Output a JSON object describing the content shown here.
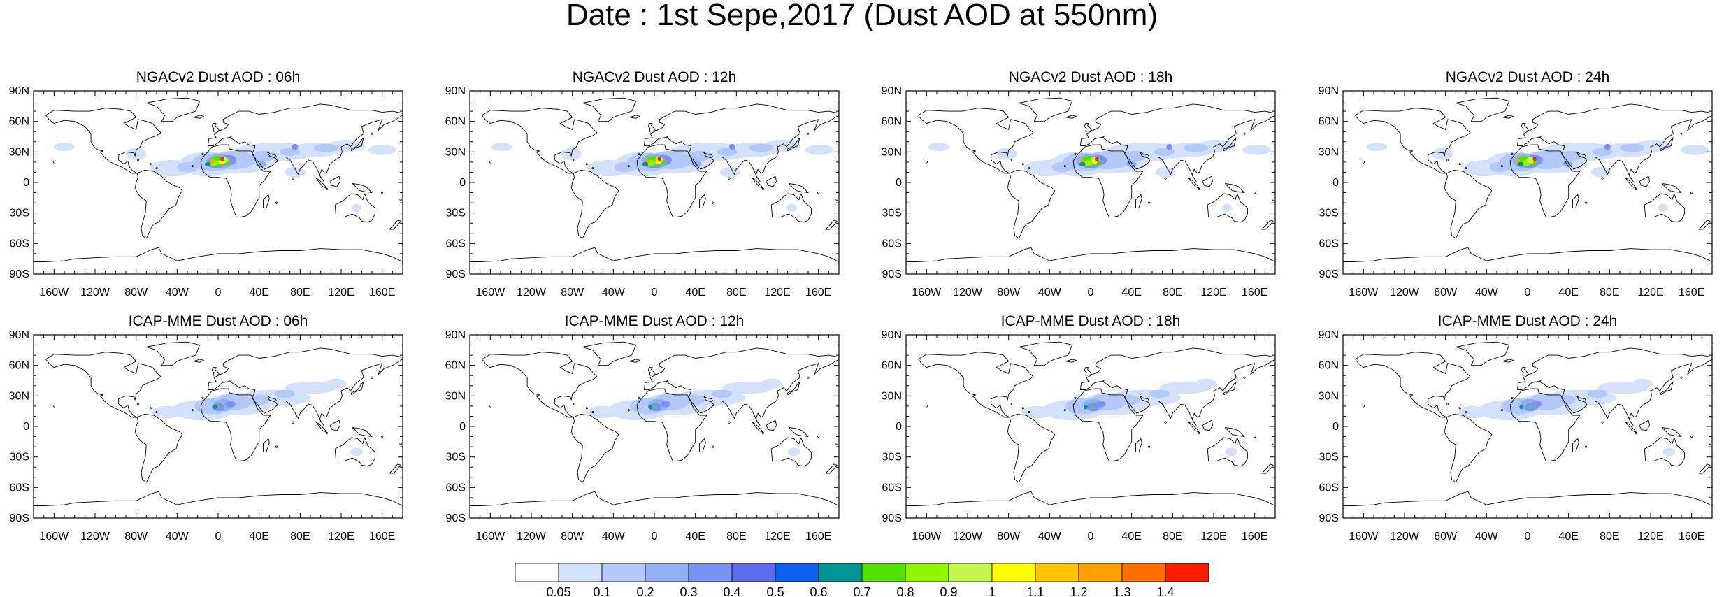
{
  "title": "Date : 1st Sepe,2017 (Dust AOD at 550nm)",
  "panels": [
    {
      "title": "NGACv2 Dust AOD : 06h",
      "model": "NGACv2",
      "hour": "06h"
    },
    {
      "title": "NGACv2 Dust AOD : 12h",
      "model": "NGACv2",
      "hour": "12h"
    },
    {
      "title": "NGACv2 Dust AOD : 18h",
      "model": "NGACv2",
      "hour": "18h"
    },
    {
      "title": "NGACv2 Dust AOD : 24h",
      "model": "NGACv2",
      "hour": "24h"
    },
    {
      "title": "ICAP-MME Dust AOD : 06h",
      "model": "ICAP-MME",
      "hour": "06h"
    },
    {
      "title": "ICAP-MME Dust AOD : 12h",
      "model": "ICAP-MME",
      "hour": "12h"
    },
    {
      "title": "ICAP-MME Dust AOD : 18h",
      "model": "ICAP-MME",
      "hour": "18h"
    },
    {
      "title": "ICAP-MME Dust AOD : 24h",
      "model": "ICAP-MME",
      "hour": "24h"
    }
  ],
  "lat_ticks": [
    "90N",
    "60N",
    "30N",
    "0",
    "30S",
    "60S",
    "90S"
  ],
  "lon_ticks": [
    "160W",
    "120W",
    "80W",
    "40W",
    "0",
    "40E",
    "80E",
    "120E",
    "160E"
  ],
  "colorbar": {
    "labels": [
      "0.05",
      "0.1",
      "0.2",
      "0.3",
      "0.4",
      "0.5",
      "0.6",
      "0.7",
      "0.8",
      "0.9",
      "1",
      "1.1",
      "1.2",
      "1.3",
      "1.4"
    ],
    "colors": [
      "#ffffff",
      "#d4e1fb",
      "#b4c8f8",
      "#94b0f5",
      "#7a93f3",
      "#5c6cec",
      "#0d61ef",
      "#009393",
      "#52e000",
      "#8ff600",
      "#c1f84b",
      "#ffff00",
      "#ffc400",
      "#ff9f00",
      "#ff6f00",
      "#ff1d00"
    ]
  }
}
